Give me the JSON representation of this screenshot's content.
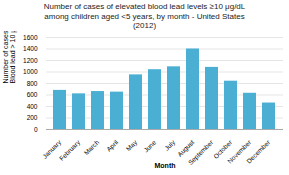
{
  "chart_data": {
    "type": "bar",
    "title": "Number of cases of elevated blood lead levels ≥10 μg/dL\namong children aged <5 years, by month  - United States\n(2012)",
    "xlabel": "Month",
    "ylabel": "Number of cases of\nBlood lead > 10 μg/dl",
    "categories": [
      "January",
      "February",
      "March",
      "April",
      "May",
      "June",
      "July",
      "August",
      "September",
      "October",
      "November",
      "December"
    ],
    "values": [
      680,
      620,
      660,
      650,
      950,
      1040,
      1090,
      1400,
      1080,
      840,
      630,
      460
    ],
    "color": "#4BAFD4",
    "ylim": [
      0,
      1600
    ],
    "yticks": [
      0,
      200,
      400,
      600,
      800,
      1000,
      1200,
      1400,
      1600
    ],
    "grid": true
  }
}
